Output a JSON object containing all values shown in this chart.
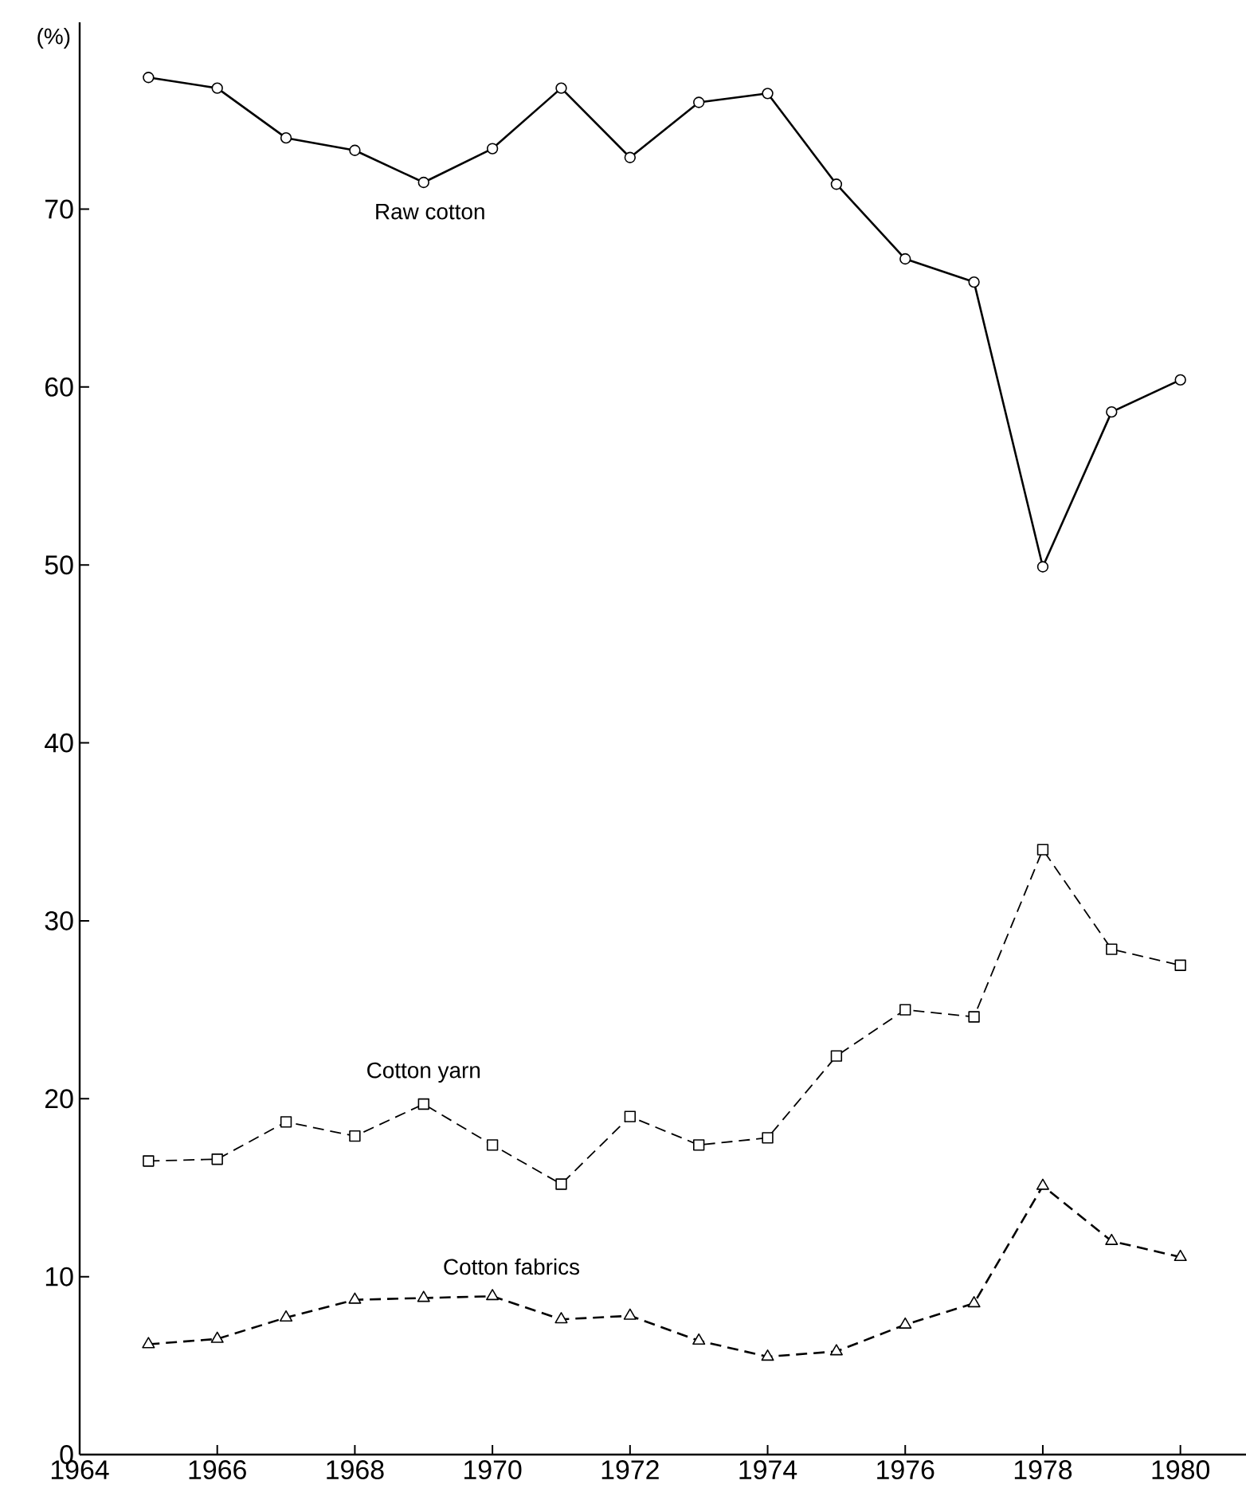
{
  "chart_data": {
    "type": "line",
    "ylabel": "(%)",
    "x": [
      1965,
      1966,
      1967,
      1968,
      1969,
      1970,
      1971,
      1972,
      1973,
      1974,
      1975,
      1976,
      1977,
      1978,
      1979,
      1980
    ],
    "series": [
      {
        "name": "Raw cotton",
        "color": "#000000",
        "marker": "circle",
        "line_style": "solid",
        "values": [
          77.4,
          76.8,
          74.0,
          73.3,
          71.5,
          73.4,
          76.8,
          72.9,
          76.0,
          76.5,
          71.4,
          67.2,
          65.9,
          49.9,
          58.6,
          60.4
        ]
      },
      {
        "name": "Cotton yarn",
        "color": "#000000",
        "marker": "square",
        "line_style": "dashed",
        "values": [
          16.5,
          16.6,
          18.7,
          17.9,
          19.7,
          17.4,
          15.2,
          19.0,
          17.4,
          17.8,
          22.4,
          25.0,
          24.6,
          34.0,
          28.4,
          27.5
        ]
      },
      {
        "name": "Cotton fabrics",
        "color": "#000000",
        "marker": "triangle",
        "line_style": "dashed",
        "values": [
          6.2,
          6.5,
          7.7,
          8.7,
          8.8,
          8.9,
          7.6,
          7.8,
          6.4,
          5.5,
          5.8,
          7.3,
          8.5,
          15.1,
          12.0,
          11.1
        ]
      }
    ],
    "xlim": [
      1964,
      1981
    ],
    "ylim": [
      0,
      80.5
    ],
    "xticks": [
      1964,
      1966,
      1968,
      1970,
      1972,
      1974,
      1976,
      1978,
      1980
    ],
    "yticks": [
      0,
      10,
      20,
      30,
      40,
      50,
      60,
      70
    ],
    "grid": false,
    "legend": false
  }
}
